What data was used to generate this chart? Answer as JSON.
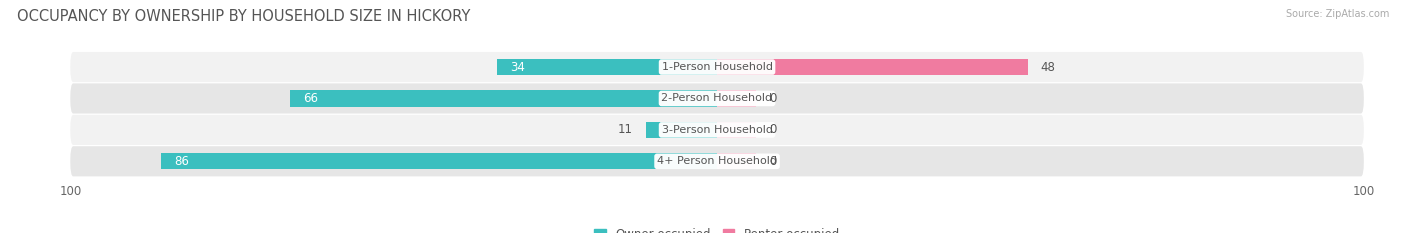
{
  "title": "OCCUPANCY BY OWNERSHIP BY HOUSEHOLD SIZE IN HICKORY",
  "source": "Source: ZipAtlas.com",
  "categories": [
    "1-Person Household",
    "2-Person Household",
    "3-Person Household",
    "4+ Person Household"
  ],
  "owner_values": [
    34,
    66,
    11,
    86
  ],
  "renter_values": [
    48,
    0,
    0,
    0
  ],
  "owner_color": "#3bbfbf",
  "renter_color": "#f07ba0",
  "renter_zero_color": "#f5b8cb",
  "row_bg_light": "#f2f2f2",
  "row_bg_dark": "#e6e6e6",
  "x_max": 100,
  "title_fontsize": 10.5,
  "label_fontsize": 8.0,
  "value_fontsize": 8.5,
  "tick_fontsize": 8.5,
  "legend_fontsize": 8.5
}
